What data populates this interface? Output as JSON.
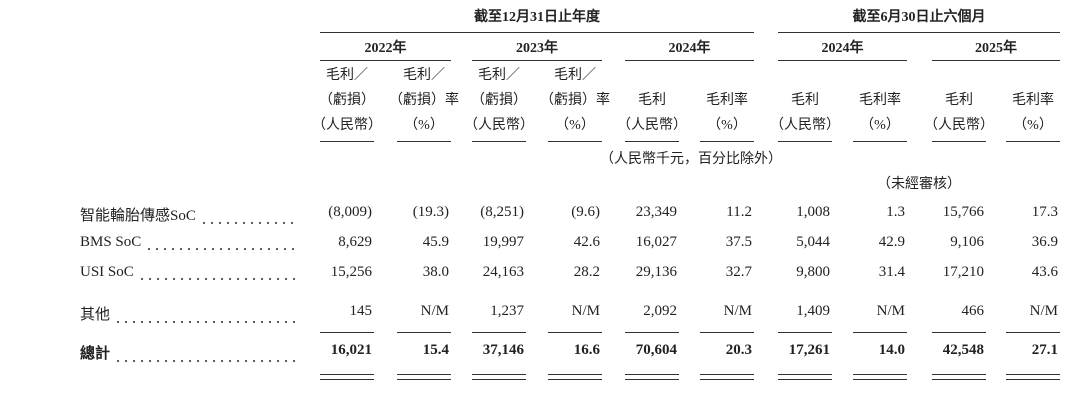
{
  "header": {
    "groups": [
      {
        "label": "截至12月31日止年度",
        "from": 0,
        "to": 5
      },
      {
        "label": "截至6月30日止六個月",
        "from": 6,
        "to": 9
      }
    ],
    "years": [
      "2022年",
      "2023年",
      "2024年",
      "2024年",
      "2025年"
    ],
    "unit_note": "（人民幣千元，百分比除外）",
    "unaudited_note": "（未經審核）"
  },
  "columns": [
    {
      "lines": [
        "毛利／",
        "（虧損）",
        "（人民幣）"
      ]
    },
    {
      "lines": [
        "毛利／",
        "（虧損）率",
        "（%）"
      ]
    },
    {
      "lines": [
        "毛利／",
        "（虧損）",
        "（人民幣）"
      ]
    },
    {
      "lines": [
        "毛利／",
        "（虧損）率",
        "（%）"
      ]
    },
    {
      "lines": [
        "毛利",
        "（人民幣）"
      ]
    },
    {
      "lines": [
        "毛利率",
        "（%）"
      ]
    },
    {
      "lines": [
        "毛利",
        "（人民幣）"
      ]
    },
    {
      "lines": [
        "毛利率",
        "（%）"
      ]
    },
    {
      "lines": [
        "毛利",
        "（人民幣）"
      ]
    },
    {
      "lines": [
        "毛利率",
        "（%）"
      ]
    }
  ],
  "table": {
    "rows": [
      {
        "label": "智能輪胎傳感SoC",
        "cells": [
          "(8,009)",
          "(19.3)",
          "(8,251)",
          "(9.6)",
          "23,349",
          "11.2",
          "1,008",
          "1.3",
          "15,766",
          "17.3"
        ]
      },
      {
        "label": "BMS SoC",
        "cells": [
          "8,629",
          "45.9",
          "19,997",
          "42.6",
          "16,027",
          "37.5",
          "5,044",
          "42.9",
          "9,106",
          "36.9"
        ]
      },
      {
        "label": "USI SoC",
        "cells": [
          "15,256",
          "38.0",
          "24,163",
          "28.2",
          "29,136",
          "32.7",
          "9,800",
          "31.4",
          "17,210",
          "43.6"
        ]
      },
      {
        "label": "其他",
        "cells": [
          "145",
          "N/M",
          "1,237",
          "N/M",
          "2,092",
          "N/M",
          "1,409",
          "N/M",
          "466",
          "N/M"
        ]
      },
      {
        "label": "總計",
        "cells": [
          "16,021",
          "15.4",
          "37,146",
          "16.6",
          "70,604",
          "20.3",
          "17,261",
          "14.0",
          "42,548",
          "27.1"
        ]
      }
    ]
  }
}
